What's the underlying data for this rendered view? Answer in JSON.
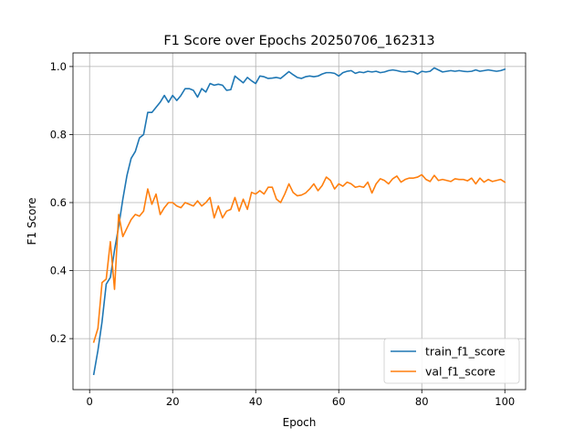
{
  "chart_data": {
    "type": "line",
    "title": "F1 Score over Epochs 20250706_162313",
    "xlabel": "Epoch",
    "ylabel": "F1 Score",
    "xlim": [
      -4,
      105
    ],
    "ylim": [
      0.05,
      1.04
    ],
    "xticks": [
      0,
      20,
      40,
      60,
      80,
      100
    ],
    "yticks": [
      0.2,
      0.4,
      0.6,
      0.8,
      1.0
    ],
    "ytick_labels": [
      "0.2",
      "0.4",
      "0.6",
      "0.8",
      "1.0"
    ],
    "grid": true,
    "legend_position": "lower-right",
    "x": [
      1,
      2,
      3,
      4,
      5,
      6,
      7,
      8,
      9,
      10,
      11,
      12,
      13,
      14,
      15,
      16,
      17,
      18,
      19,
      20,
      21,
      22,
      23,
      24,
      25,
      26,
      27,
      28,
      29,
      30,
      31,
      32,
      33,
      34,
      35,
      36,
      37,
      38,
      39,
      40,
      41,
      42,
      43,
      44,
      45,
      46,
      47,
      48,
      49,
      50,
      51,
      52,
      53,
      54,
      55,
      56,
      57,
      58,
      59,
      60,
      61,
      62,
      63,
      64,
      65,
      66,
      67,
      68,
      69,
      70,
      71,
      72,
      73,
      74,
      75,
      76,
      77,
      78,
      79,
      80,
      81,
      82,
      83,
      84,
      85,
      86,
      87,
      88,
      89,
      90,
      91,
      92,
      93,
      94,
      95,
      96,
      97,
      98,
      99,
      100
    ],
    "series": [
      {
        "name": "train_f1_score",
        "color": "#1f77b4",
        "values": [
          0.095,
          0.165,
          0.25,
          0.36,
          0.38,
          0.46,
          0.53,
          0.61,
          0.68,
          0.73,
          0.75,
          0.79,
          0.8,
          0.865,
          0.865,
          0.88,
          0.895,
          0.915,
          0.895,
          0.915,
          0.9,
          0.915,
          0.935,
          0.935,
          0.93,
          0.91,
          0.935,
          0.925,
          0.95,
          0.945,
          0.948,
          0.945,
          0.93,
          0.932,
          0.972,
          0.962,
          0.952,
          0.968,
          0.958,
          0.95,
          0.972,
          0.97,
          0.965,
          0.966,
          0.968,
          0.965,
          0.975,
          0.985,
          0.976,
          0.968,
          0.965,
          0.97,
          0.972,
          0.97,
          0.972,
          0.978,
          0.982,
          0.982,
          0.98,
          0.972,
          0.982,
          0.986,
          0.988,
          0.98,
          0.984,
          0.982,
          0.986,
          0.984,
          0.986,
          0.982,
          0.984,
          0.988,
          0.99,
          0.988,
          0.985,
          0.984,
          0.986,
          0.984,
          0.978,
          0.986,
          0.984,
          0.986,
          0.996,
          0.99,
          0.984,
          0.986,
          0.988,
          0.986,
          0.988,
          0.986,
          0.985,
          0.986,
          0.99,
          0.986,
          0.988,
          0.99,
          0.988,
          0.986,
          0.988,
          0.992
        ]
      },
      {
        "name": "val_f1_score",
        "color": "#ff7f0e",
        "values": [
          0.19,
          0.23,
          0.365,
          0.375,
          0.485,
          0.345,
          0.565,
          0.5,
          0.525,
          0.55,
          0.565,
          0.56,
          0.575,
          0.64,
          0.595,
          0.625,
          0.565,
          0.585,
          0.6,
          0.6,
          0.59,
          0.585,
          0.6,
          0.595,
          0.59,
          0.605,
          0.59,
          0.6,
          0.615,
          0.555,
          0.59,
          0.555,
          0.575,
          0.58,
          0.615,
          0.575,
          0.61,
          0.58,
          0.63,
          0.625,
          0.635,
          0.625,
          0.645,
          0.645,
          0.61,
          0.6,
          0.625,
          0.655,
          0.63,
          0.62,
          0.622,
          0.628,
          0.64,
          0.655,
          0.635,
          0.65,
          0.675,
          0.665,
          0.64,
          0.655,
          0.648,
          0.66,
          0.655,
          0.645,
          0.648,
          0.645,
          0.66,
          0.628,
          0.655,
          0.67,
          0.665,
          0.655,
          0.67,
          0.678,
          0.66,
          0.668,
          0.672,
          0.672,
          0.675,
          0.682,
          0.668,
          0.662,
          0.68,
          0.665,
          0.668,
          0.665,
          0.662,
          0.67,
          0.668,
          0.668,
          0.664,
          0.672,
          0.655,
          0.672,
          0.66,
          0.668,
          0.662,
          0.665,
          0.668,
          0.66
        ]
      }
    ]
  }
}
